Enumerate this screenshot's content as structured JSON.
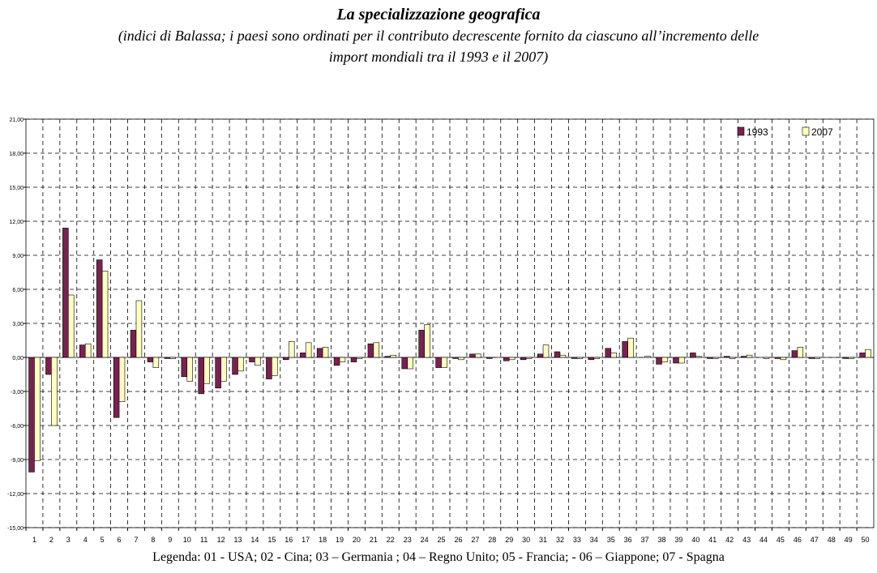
{
  "chart_data": {
    "type": "bar",
    "title": "La specializzazione geografica",
    "subtitle": [
      "(indici di Balassa; i paesi sono ordinati per il contributo decrescente fornito da ciascuno all’incremento delle",
      "import mondiali tra il 1993 e il 2007)"
    ],
    "note": "Legenda: 01 - USA; 02 - Cina; 03 – Germania ; 04 – Regno Unito; 05 -  Francia; - 06 – Giappone; 07 - Spagna",
    "categories": [
      "1",
      "2",
      "3",
      "4",
      "5",
      "6",
      "7",
      "8",
      "9",
      "10",
      "11",
      "12",
      "13",
      "14",
      "15",
      "16",
      "17",
      "18",
      "19",
      "20",
      "21",
      "22",
      "23",
      "24",
      "25",
      "26",
      "27",
      "28",
      "29",
      "30",
      "31",
      "32",
      "33",
      "34",
      "35",
      "36",
      "37",
      "38",
      "39",
      "40",
      "41",
      "42",
      "43",
      "44",
      "45",
      "46",
      "47",
      "48",
      "49",
      "50"
    ],
    "series": [
      {
        "name": "1993",
        "color": "#7b2150",
        "values": [
          -10.1,
          -1.5,
          11.4,
          1.1,
          8.6,
          -5.3,
          2.4,
          -0.4,
          -0.1,
          -1.7,
          -3.2,
          -2.7,
          -1.5,
          -0.4,
          -1.9,
          -0.2,
          0.4,
          0.8,
          -0.7,
          -0.4,
          1.2,
          0.1,
          -1.0,
          2.4,
          -0.9,
          -0.1,
          0.3,
          -0.1,
          -0.3,
          -0.2,
          0.3,
          0.5,
          -0.1,
          -0.2,
          0.8,
          1.4,
          0.0,
          -0.6,
          -0.5,
          0.4,
          -0.1,
          0.1,
          0.1,
          0.0,
          -0.1,
          0.6,
          -0.1,
          0.0,
          -0.1,
          0.4
        ]
      },
      {
        "name": "2007",
        "color": "#ffffc0",
        "values": [
          -9.1,
          -6.0,
          5.5,
          1.2,
          7.6,
          -3.9,
          5.0,
          -0.9,
          -0.1,
          -2.1,
          -2.3,
          -2.1,
          -1.2,
          -0.7,
          -1.6,
          1.4,
          1.3,
          0.9,
          -0.4,
          -0.1,
          1.3,
          0.2,
          -1.0,
          2.9,
          -0.9,
          -0.2,
          0.3,
          0.0,
          -0.2,
          -0.1,
          1.1,
          0.2,
          -0.1,
          -0.1,
          0.4,
          1.7,
          0.1,
          -0.4,
          -0.5,
          0.1,
          -0.1,
          -0.1,
          0.2,
          -0.1,
          -0.2,
          0.9,
          -0.1,
          0.0,
          -0.1,
          0.7
        ]
      }
    ],
    "ylim": [
      -15,
      21
    ],
    "yticks": [
      {
        "value": -15,
        "label": "-15,00"
      },
      {
        "value": -12,
        "label": "-12,00"
      },
      {
        "value": -9,
        "label": "-9,00"
      },
      {
        "value": -6,
        "label": "-6,00"
      },
      {
        "value": -3,
        "label": "-3,00"
      },
      {
        "value": 0,
        "label": "0,00"
      },
      {
        "value": 3,
        "label": "3,00"
      },
      {
        "value": 6,
        "label": "6,00"
      },
      {
        "value": 9,
        "label": "9,00"
      },
      {
        "value": 12,
        "label": "12,00"
      },
      {
        "value": 15,
        "label": "15,00"
      },
      {
        "value": 18,
        "label": "18,00"
      },
      {
        "value": 21,
        "label": "21,00"
      }
    ],
    "grid": true,
    "legend": "top-right"
  }
}
